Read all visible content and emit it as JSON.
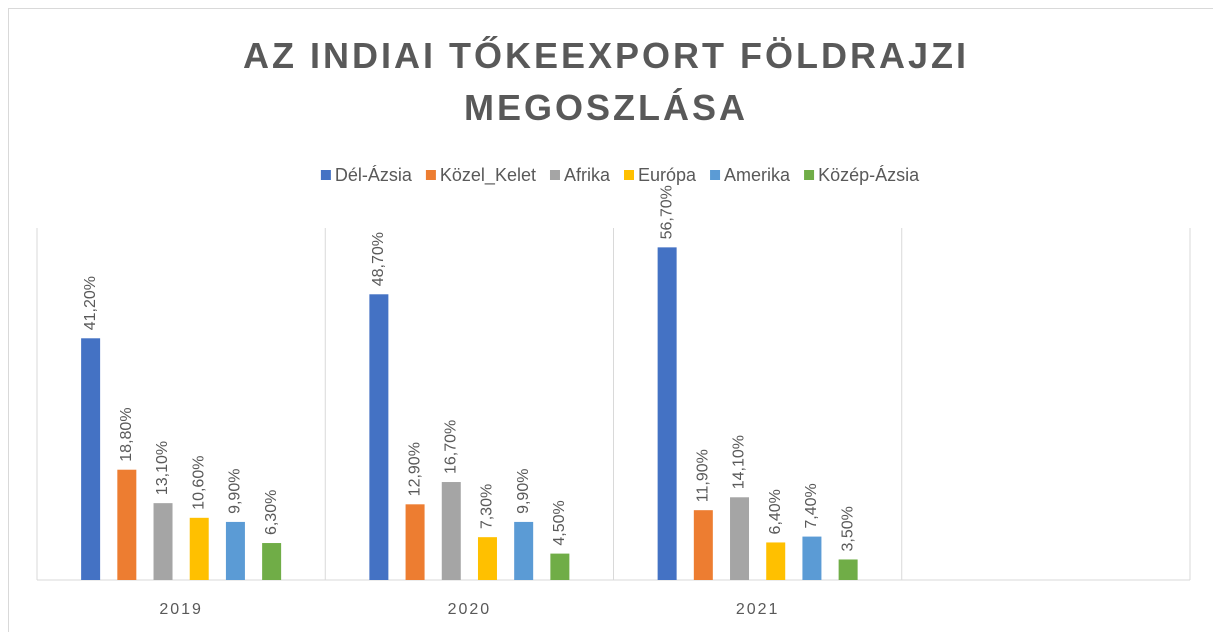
{
  "chart_data": {
    "type": "bar",
    "title": "AZ INDIAI TŐKEEXPORT FÖLDRAJZI MEGOSZLÁSA",
    "categories": [
      "2019",
      "2020",
      "2021",
      null
    ],
    "series": [
      {
        "name": "Dél-Ázsia",
        "color": "#4472c4",
        "values": [
          41.2,
          48.7,
          56.7,
          null
        ],
        "value_labels": [
          "41,20%",
          "48,70%",
          "56,70%",
          null
        ]
      },
      {
        "name": "Közel_Kelet",
        "color": "#ed7d31",
        "values": [
          18.8,
          12.9,
          11.9,
          null
        ],
        "value_labels": [
          "18,80%",
          "12,90%",
          "11,90%",
          null
        ]
      },
      {
        "name": "Afrika",
        "color": "#a5a5a5",
        "values": [
          13.1,
          16.7,
          14.1,
          null
        ],
        "value_labels": [
          "13,10%",
          "16,70%",
          "14,10%",
          null
        ]
      },
      {
        "name": "Európa",
        "color": "#ffc000",
        "values": [
          10.6,
          7.3,
          6.4,
          null
        ],
        "value_labels": [
          "10,60%",
          "7,30%",
          "6,40%",
          null
        ]
      },
      {
        "name": "Amerika",
        "color": "#5b9bd5",
        "values": [
          9.9,
          9.9,
          7.4,
          null
        ],
        "value_labels": [
          "9,90%",
          "9,90%",
          "7,40%",
          null
        ]
      },
      {
        "name": "Közép-Ázsia",
        "color": "#70ad47",
        "values": [
          6.3,
          4.5,
          3.5,
          null
        ],
        "value_labels": [
          "6,30%",
          "4,50%",
          "3,50%",
          null
        ]
      }
    ],
    "ylim": [
      0,
      60
    ],
    "legend": "top"
  }
}
